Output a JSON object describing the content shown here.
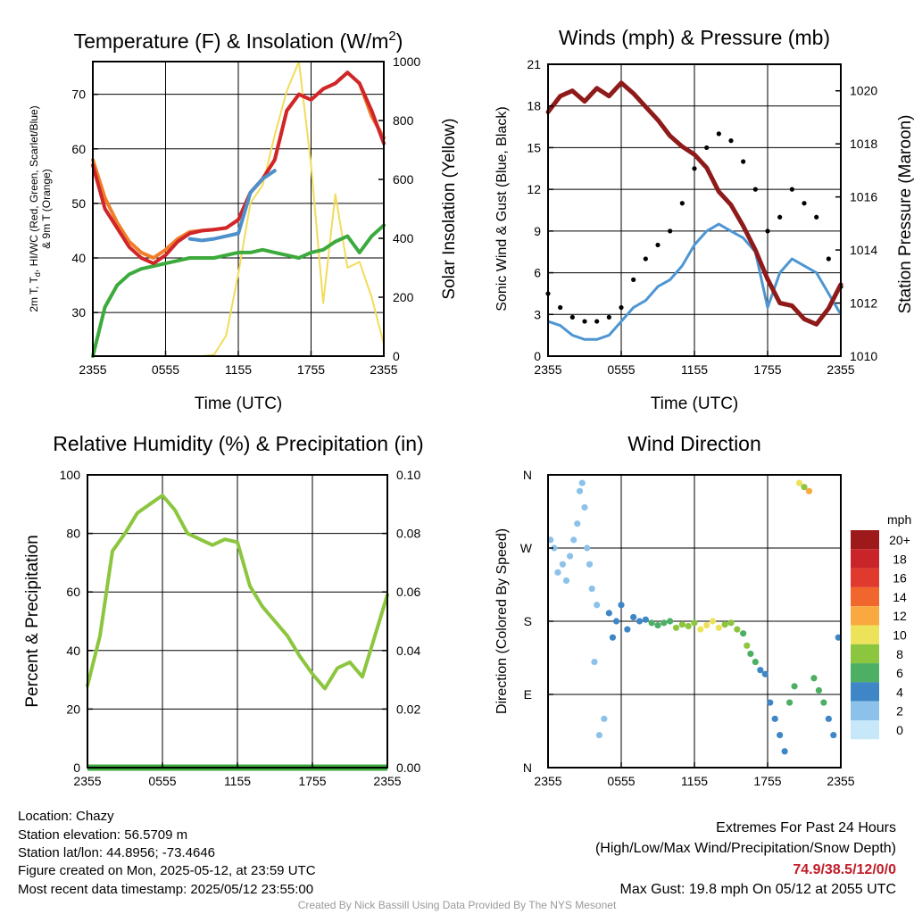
{
  "colors": {
    "temp": "#d0262a",
    "dewpoint": "#3caa3c",
    "wind_chill": "#4e90cc",
    "temp_9m": "#f07e28",
    "solar": "#f2dc5a",
    "wind": "#4e96d2",
    "gust": "#000000",
    "pressure": "#8f1a1a",
    "rh": "#8cc63f",
    "precip": "#3caa3c",
    "extremes": "#c01c28"
  },
  "panels": {
    "temp": {
      "title_text": "Temperature (F) & Insolation (W/m",
      "title_sup": "2",
      "title_end": ")",
      "xlabel": "Time (UTC)",
      "ylabel_left_line1": "2m T, T",
      "ylabel_left_sub": "d",
      "ylabel_left_line1_end": ", HI/WC (Red, Green, Scarlet/Blue)",
      "ylabel_left_line2": "& 9m T (Orange)",
      "ylabel_right": "Solar Insolation (Yellow)"
    },
    "winds": {
      "title": "Winds (mph) & Pressure (mb)",
      "xlabel": "Time (UTC)",
      "ylabel_left": "Sonic Wind & Gust (Blue, Black)",
      "ylabel_right": "Station Pressure (Maroon)"
    },
    "rh": {
      "title": "Relative Humidity (%) & Precipitation (in)",
      "ylabel_left": "Percent & Precipitation"
    },
    "wdir": {
      "title": "Wind Direction",
      "ylabel_left": "Direction (Colored By Speed)",
      "legend_title": "mph",
      "legend_labels": [
        "20+",
        "18",
        "16",
        "14",
        "12",
        "10",
        "8",
        "6",
        "4",
        "2",
        "0"
      ],
      "legend_colors": [
        "#9e1a1a",
        "#c8242a",
        "#e03a2e",
        "#f0662c",
        "#f9a940",
        "#ece35a",
        "#8cc63f",
        "#4caf63",
        "#3f86c6",
        "#8cc2ea",
        "#c6e8f8"
      ]
    }
  },
  "footer": {
    "location": "Location: Chazy",
    "elevation": "Station elevation: 56.5709 m",
    "latlon": "Station lat/lon: 44.8956; -73.4646",
    "created": "Figure created on Mon, 2025-05-12, at 23:59 UTC",
    "recent": "Most recent data timestamp: 2025/05/12 23:55:00",
    "extremes_title": "Extremes For Past 24 Hours",
    "extremes_subtitle": "(High/Low/Max Wind/Precipitation/Snow Depth)",
    "extremes_values": "74.9/38.5/12/0/0",
    "max_gust": "Max Gust: 19.8 mph On 05/12 at 2055 UTC",
    "credit": "Created By Nick Bassill Using Data Provided By The NYS Mesonet"
  },
  "chart_data": [
    {
      "type": "line",
      "title": "Temperature (F) & Insolation (W/m2)",
      "xlabel": "Time (UTC)",
      "ylabel": "2m T, Td, HI/WC (Red, Green, Scarlet/Blue) & 9m T (Orange)",
      "y2label": "Solar Insolation (Yellow)",
      "x_ticks": [
        "2355",
        "0555",
        "1155",
        "1755",
        "2355"
      ],
      "ylim": [
        22,
        76
      ],
      "y_ticks": [
        30,
        40,
        50,
        60,
        70
      ],
      "y2lim": [
        0,
        1000
      ],
      "y2_ticks": [
        0,
        200,
        400,
        600,
        800,
        1000
      ],
      "x_hours": [
        0,
        1,
        2,
        3,
        4,
        5,
        6,
        7,
        8,
        9,
        10,
        11,
        12,
        13,
        14,
        15,
        16,
        17,
        18,
        19,
        20,
        21,
        22,
        23,
        24
      ],
      "series": [
        {
          "name": "2m T",
          "axis": "left",
          "color_key": "temp",
          "values": [
            57,
            49,
            45.5,
            42,
            40,
            39,
            40.5,
            43,
            44.5,
            45,
            45.2,
            45.5,
            47,
            52,
            54.5,
            58,
            67,
            70,
            69,
            71,
            72,
            74,
            72,
            67,
            61
          ]
        },
        {
          "name": "9m T",
          "axis": "left",
          "color_key": "temp_9m",
          "values": [
            58,
            51,
            46.5,
            43,
            41,
            40,
            41.5,
            43.5,
            44.8,
            45,
            45.2,
            45.5,
            47,
            52,
            54.5,
            58,
            67,
            70,
            69,
            71,
            72,
            74,
            72,
            66,
            62
          ]
        },
        {
          "name": "WC",
          "axis": "left",
          "color_key": "wind_chill",
          "values": [
            null,
            null,
            null,
            null,
            null,
            null,
            null,
            null,
            43.5,
            43.2,
            43.5,
            44,
            44.5,
            52,
            54.5,
            56,
            null,
            null,
            null,
            null,
            null,
            null,
            null,
            null,
            null
          ]
        },
        {
          "name": "Td",
          "axis": "left",
          "color_key": "dewpoint",
          "values": [
            22,
            31,
            35,
            37,
            38,
            38.5,
            39,
            39.5,
            40,
            40,
            40,
            40.5,
            41,
            41,
            41.5,
            41,
            40.5,
            40,
            41,
            41.5,
            43,
            44,
            41,
            44,
            46
          ]
        },
        {
          "name": "Solar",
          "axis": "right",
          "color_key": "solar",
          "values": [
            0,
            0,
            0,
            0,
            0,
            0,
            0,
            0,
            0,
            0,
            5,
            70,
            280,
            520,
            580,
            750,
            900,
            1000,
            650,
            180,
            550,
            300,
            320,
            200,
            40
          ]
        }
      ]
    },
    {
      "type": "line",
      "title": "Winds (mph) & Pressure (mb)",
      "xlabel": "Time (UTC)",
      "ylabel": "Sonic Wind & Gust (Blue, Black)",
      "y2label": "Station Pressure (Maroon)",
      "x_ticks": [
        "2355",
        "0555",
        "1155",
        "1755",
        "2355"
      ],
      "ylim": [
        0,
        21
      ],
      "y_ticks": [
        0,
        3,
        6,
        9,
        12,
        15,
        18,
        21
      ],
      "y2lim": [
        1010,
        1021
      ],
      "y2_ticks": [
        1010,
        1012,
        1014,
        1016,
        1018,
        1020
      ],
      "x_hours": [
        0,
        1,
        2,
        3,
        4,
        5,
        6,
        7,
        8,
        9,
        10,
        11,
        12,
        13,
        14,
        15,
        16,
        17,
        18,
        19,
        20,
        21,
        22,
        23,
        24
      ],
      "series": [
        {
          "name": "Wind",
          "axis": "left",
          "color_key": "wind",
          "values": [
            2.5,
            2.2,
            1.5,
            1.2,
            1.2,
            1.5,
            2.5,
            3.5,
            4,
            5,
            5.5,
            6.5,
            8,
            9,
            9.5,
            9,
            8.5,
            7.5,
            3.5,
            6,
            7,
            6.5,
            6,
            4.5,
            3
          ]
        },
        {
          "name": "Gust",
          "axis": "left",
          "color_key": "gust",
          "values": [
            4.5,
            3.5,
            2.8,
            2.5,
            2.5,
            2.8,
            3.5,
            5.5,
            7,
            8,
            9,
            11,
            13.5,
            15,
            16,
            15.5,
            14,
            12,
            9,
            10,
            12,
            11,
            10,
            7,
            5
          ]
        },
        {
          "name": "Pressure",
          "axis": "right",
          "color_key": "pressure",
          "values": [
            1019.2,
            1019.8,
            1020,
            1019.6,
            1020.1,
            1019.8,
            1020.3,
            1019.9,
            1019.4,
            1018.9,
            1018.3,
            1017.9,
            1017.6,
            1017.1,
            1016.2,
            1015.7,
            1014.9,
            1014.0,
            1012.9,
            1012.0,
            1011.9,
            1011.4,
            1011.2,
            1011.8,
            1012.7
          ]
        }
      ]
    },
    {
      "type": "line",
      "title": "Relative Humidity (%) & Precipitation (in)",
      "ylabel": "Percent & Precipitation",
      "x_ticks": [
        "2355",
        "0555",
        "1155",
        "1755",
        "2355"
      ],
      "ylim": [
        0,
        100
      ],
      "y_ticks": [
        0,
        20,
        40,
        60,
        80,
        100
      ],
      "y2lim": [
        0,
        0.1
      ],
      "y2_ticks": [
        "0.00",
        "0.02",
        "0.04",
        "0.06",
        "0.08",
        "0.10"
      ],
      "x_hours": [
        0,
        1,
        2,
        3,
        4,
        5,
        6,
        7,
        8,
        9,
        10,
        11,
        12,
        13,
        14,
        15,
        16,
        17,
        18,
        19,
        20,
        21,
        22,
        23,
        24
      ],
      "series": [
        {
          "name": "RH",
          "axis": "left",
          "color_key": "rh",
          "values": [
            28,
            45,
            74,
            80,
            87,
            90,
            93,
            88,
            80,
            78,
            76,
            78,
            77,
            62,
            55,
            50,
            45,
            38,
            32,
            27,
            34,
            36,
            31,
            45,
            59
          ]
        },
        {
          "name": "Precip",
          "axis": "right",
          "color_key": "precip",
          "values": [
            0,
            0,
            0,
            0,
            0,
            0,
            0,
            0,
            0,
            0,
            0,
            0,
            0,
            0,
            0,
            0,
            0,
            0,
            0,
            0,
            0,
            0,
            0,
            0,
            0
          ]
        }
      ]
    },
    {
      "type": "scatter",
      "title": "Wind Direction",
      "ylabel": "Direction (Colored By Speed)",
      "x_ticks": [
        "2355",
        "0555",
        "1155",
        "1755",
        "2355"
      ],
      "y_ticks": [
        "N",
        "E",
        "S",
        "W",
        "N"
      ],
      "ylim": [
        0,
        360
      ],
      "colorbar_label": "mph",
      "series": [
        {
          "name": "Direction",
          "x": [
            0.2,
            0.5,
            0.8,
            1.2,
            1.5,
            1.8,
            2.1,
            2.4,
            2.6,
            2.8,
            3.0,
            3.2,
            3.4,
            3.6,
            3.8,
            4.0,
            4.2,
            4.6,
            5.0,
            5.3,
            5.6,
            6.0,
            6.5,
            7.0,
            7.5,
            8.0,
            8.5,
            9.0,
            9.5,
            10.0,
            10.5,
            11.0,
            11.5,
            12.0,
            12.5,
            13.0,
            13.5,
            14.0,
            14.5,
            15.0,
            15.5,
            16.0,
            16.3,
            16.6,
            17.0,
            17.4,
            17.8,
            18.2,
            18.6,
            19.0,
            19.4,
            19.8,
            20.2,
            20.6,
            21.0,
            21.4,
            21.8,
            22.2,
            22.6,
            23.0,
            23.4,
            23.8
          ],
          "y": [
            280,
            270,
            240,
            250,
            230,
            260,
            280,
            300,
            340,
            350,
            320,
            270,
            250,
            220,
            130,
            200,
            40,
            60,
            190,
            160,
            180,
            200,
            170,
            185,
            180,
            182,
            178,
            175,
            178,
            180,
            172,
            176,
            174,
            178,
            170,
            175,
            180,
            172,
            176,
            178,
            170,
            165,
            150,
            140,
            130,
            120,
            115,
            80,
            60,
            40,
            20,
            80,
            100,
            350,
            345,
            340,
            110,
            95,
            80,
            60,
            40,
            160
          ],
          "speed": [
            2,
            2,
            1,
            2,
            2,
            1,
            1,
            1,
            1,
            1,
            1,
            2,
            2,
            1,
            1,
            2,
            1,
            1,
            3,
            3,
            3,
            3,
            4,
            4,
            4,
            4,
            5,
            5,
            5,
            6,
            7,
            7,
            7,
            8,
            9,
            10,
            10,
            9,
            8,
            8,
            7,
            6,
            7,
            6,
            5,
            4,
            4,
            4,
            4,
            4,
            4,
            5,
            6,
            9,
            8,
            12,
            6,
            5,
            5,
            4,
            4,
            3
          ]
        }
      ]
    }
  ]
}
